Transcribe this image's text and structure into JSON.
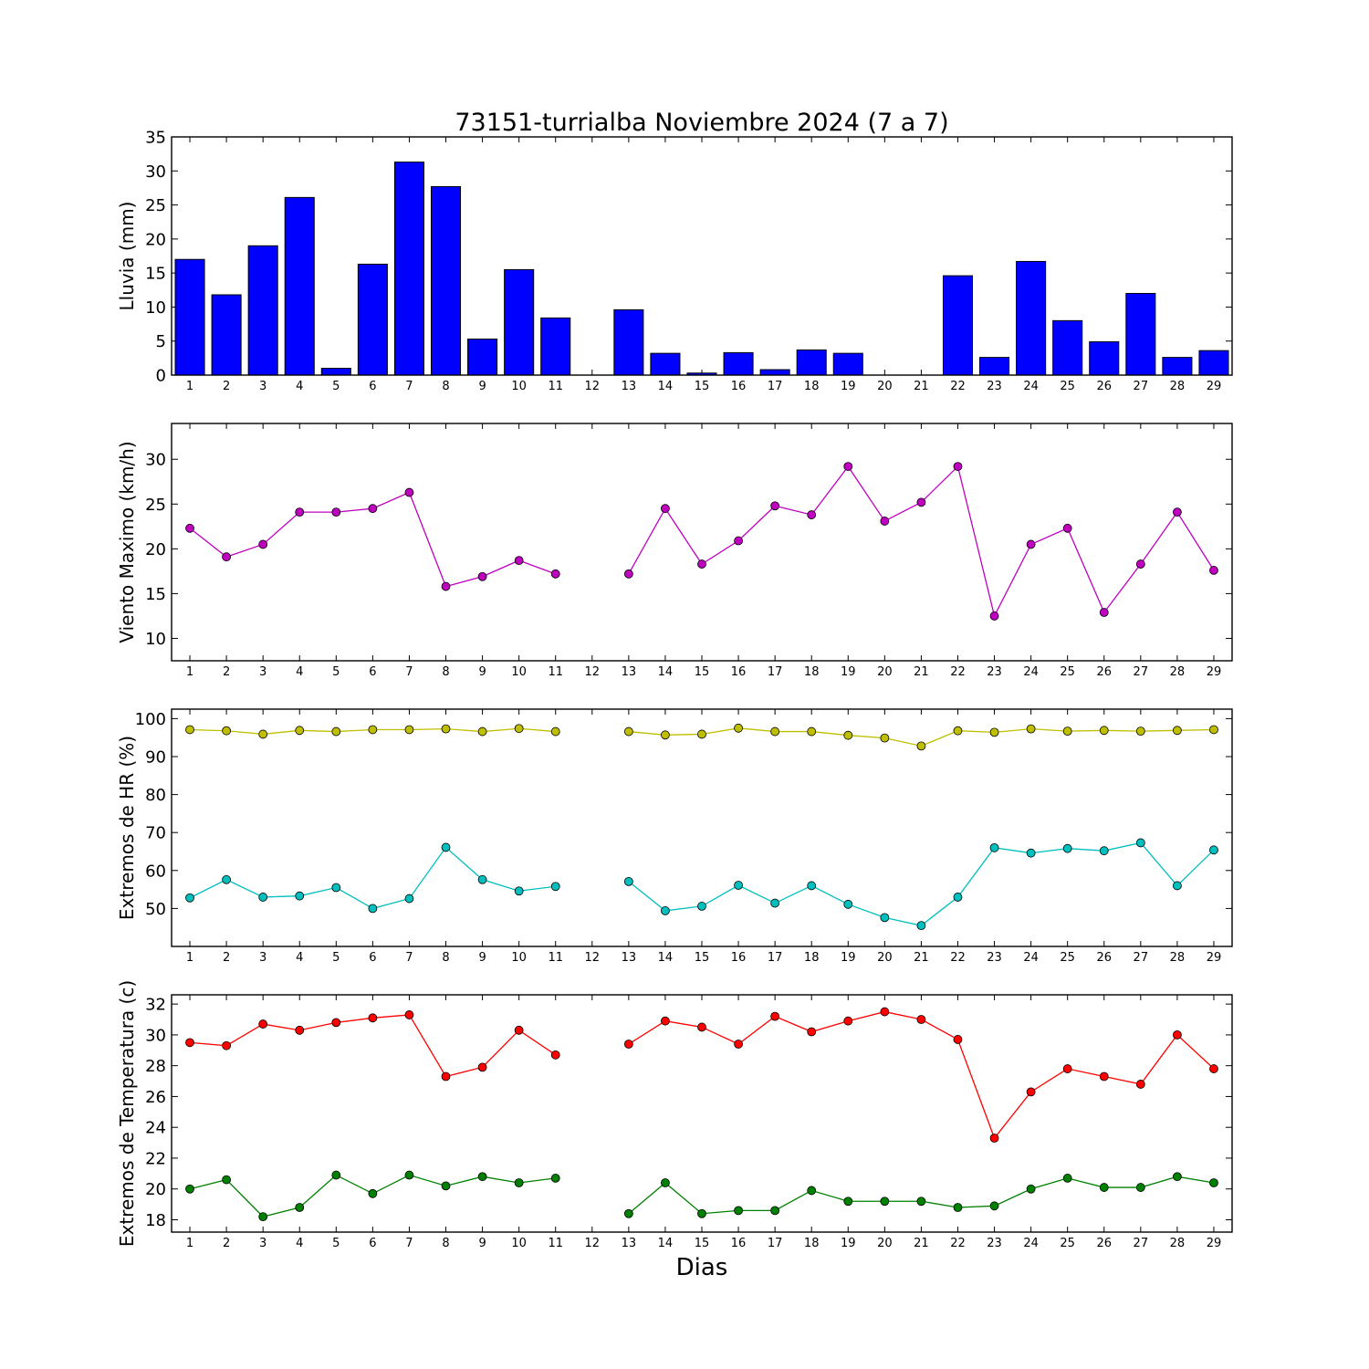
{
  "figure": {
    "title": "73151-turrialba Noviembre 2024  (7 a 7)",
    "xlabel": "Dias"
  },
  "chart_data": [
    {
      "type": "bar",
      "ylabel": "Lluvia (mm)",
      "ylim": [
        0,
        35
      ],
      "yticks": [
        0,
        5,
        10,
        15,
        20,
        25,
        30,
        35
      ],
      "categories": [
        1,
        2,
        3,
        4,
        5,
        6,
        7,
        8,
        9,
        10,
        11,
        12,
        13,
        14,
        15,
        16,
        17,
        18,
        19,
        20,
        21,
        22,
        23,
        24,
        25,
        26,
        27,
        28,
        29
      ],
      "series": [
        {
          "color": "#0000ff",
          "values": [
            17.0,
            11.8,
            19.0,
            26.1,
            1.0,
            16.3,
            31.3,
            27.7,
            5.3,
            15.5,
            8.4,
            null,
            9.6,
            3.2,
            0.3,
            3.3,
            0.8,
            3.7,
            3.2,
            0.0,
            0.0,
            14.6,
            2.6,
            16.7,
            8.0,
            4.9,
            12.0,
            2.6,
            3.6
          ]
        }
      ],
      "grid": false
    },
    {
      "type": "line",
      "ylabel": "Viento Maximo (km/h)",
      "ylim": [
        7.5,
        34
      ],
      "yticks": [
        10,
        15,
        20,
        25,
        30
      ],
      "categories": [
        1,
        2,
        3,
        4,
        5,
        6,
        7,
        8,
        9,
        10,
        11,
        12,
        13,
        14,
        15,
        16,
        17,
        18,
        19,
        20,
        21,
        22,
        23,
        24,
        25,
        26,
        27,
        28,
        29
      ],
      "series": [
        {
          "color": "#bf00bf",
          "values": [
            22.3,
            19.1,
            20.5,
            24.1,
            24.1,
            24.5,
            26.3,
            15.8,
            16.9,
            18.7,
            17.2,
            null,
            17.2,
            24.5,
            18.3,
            20.9,
            24.8,
            23.8,
            29.2,
            23.1,
            25.2,
            29.2,
            12.5,
            20.5,
            22.3,
            12.9,
            18.3,
            24.1,
            17.6
          ]
        }
      ],
      "grid": false
    },
    {
      "type": "line",
      "ylabel": "Extremos de HR (%)",
      "ylim": [
        40,
        102.5
      ],
      "yticks": [
        50,
        60,
        70,
        80,
        90,
        100
      ],
      "categories": [
        1,
        2,
        3,
        4,
        5,
        6,
        7,
        8,
        9,
        10,
        11,
        12,
        13,
        14,
        15,
        16,
        17,
        18,
        19,
        20,
        21,
        22,
        23,
        24,
        25,
        26,
        27,
        28,
        29
      ],
      "series": [
        {
          "color": "#bfbf00",
          "values": [
            97.1,
            96.8,
            95.9,
            96.9,
            96.6,
            97.1,
            97.1,
            97.3,
            96.6,
            97.4,
            96.6,
            null,
            96.6,
            95.7,
            95.9,
            97.5,
            96.6,
            96.6,
            95.6,
            94.9,
            92.8,
            96.8,
            96.4,
            97.3,
            96.7,
            96.9,
            96.7,
            96.9,
            97.1
          ]
        },
        {
          "color": "#00bfbf",
          "values": [
            52.8,
            57.6,
            53.0,
            53.3,
            55.5,
            50.0,
            52.6,
            66.1,
            57.6,
            54.6,
            55.8,
            null,
            57.1,
            49.4,
            50.6,
            56.1,
            51.4,
            56.0,
            51.1,
            47.6,
            45.5,
            53.0,
            66.0,
            64.6,
            65.8,
            65.2,
            67.3,
            56.0,
            65.4
          ]
        }
      ],
      "grid": false
    },
    {
      "type": "line",
      "ylabel": "Extremos de Temperatura (c)",
      "ylim": [
        17.2,
        32.6
      ],
      "yticks": [
        18,
        20,
        22,
        24,
        26,
        28,
        30,
        32
      ],
      "categories": [
        1,
        2,
        3,
        4,
        5,
        6,
        7,
        8,
        9,
        10,
        11,
        12,
        13,
        14,
        15,
        16,
        17,
        18,
        19,
        20,
        21,
        22,
        23,
        24,
        25,
        26,
        27,
        28,
        29
      ],
      "series": [
        {
          "color": "#ff0000",
          "values": [
            29.5,
            29.3,
            30.7,
            30.3,
            30.8,
            31.1,
            31.3,
            27.3,
            27.9,
            30.3,
            28.7,
            null,
            29.4,
            30.9,
            30.5,
            29.4,
            31.2,
            30.2,
            30.9,
            31.5,
            31.0,
            29.7,
            23.3,
            26.3,
            27.8,
            27.3,
            26.8,
            30.0,
            27.8
          ]
        },
        {
          "color": "#008000",
          "values": [
            20.0,
            20.6,
            18.2,
            18.8,
            20.9,
            19.7,
            20.9,
            20.2,
            20.8,
            20.4,
            20.7,
            null,
            18.4,
            20.4,
            18.4,
            18.6,
            18.6,
            19.9,
            19.2,
            19.2,
            19.2,
            18.8,
            18.9,
            20.0,
            20.7,
            20.1,
            20.1,
            20.8,
            20.4
          ]
        }
      ],
      "grid": false
    }
  ]
}
